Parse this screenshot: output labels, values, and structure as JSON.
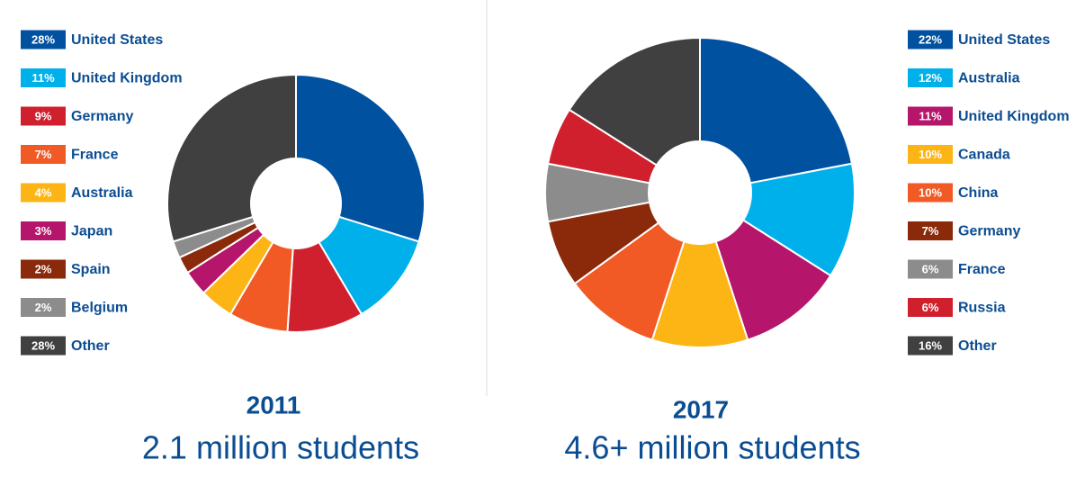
{
  "chart_data": [
    {
      "type": "donut",
      "title": "2011",
      "subtitle": "2.1 million students",
      "categories": [
        "United States",
        "United Kingdom",
        "Germany",
        "France",
        "Australia",
        "Japan",
        "Spain",
        "Belgium",
        "Other"
      ],
      "values": [
        28,
        11,
        9,
        7,
        4,
        3,
        2,
        2,
        28
      ],
      "value_labels": [
        "28%",
        "11%",
        "9%",
        "7%",
        "4%",
        "3%",
        "2%",
        "2%",
        "28%"
      ],
      "colors": [
        "#0052a0",
        "#00b0ea",
        "#d0202d",
        "#f15a24",
        "#fdb515",
        "#b5166b",
        "#8a2a0b",
        "#8c8c8c",
        "#404040"
      ]
    },
    {
      "type": "donut",
      "title": "2017",
      "subtitle": "4.6+ million students",
      "categories": [
        "United States",
        "Australia",
        "United Kingdom",
        "Canada",
        "China",
        "Germany",
        "France",
        "Russia",
        "Other"
      ],
      "values": [
        22,
        12,
        11,
        10,
        10,
        7,
        6,
        6,
        16
      ],
      "value_labels": [
        "22%",
        "12%",
        "11%",
        "10%",
        "10%",
        "7%",
        "6%",
        "6%",
        "16%"
      ],
      "colors": [
        "#0052a0",
        "#00b0ea",
        "#b5166b",
        "#fdb515",
        "#f15a24",
        "#8a2a0b",
        "#8c8c8c",
        "#d0202d",
        "#404040"
      ]
    }
  ]
}
